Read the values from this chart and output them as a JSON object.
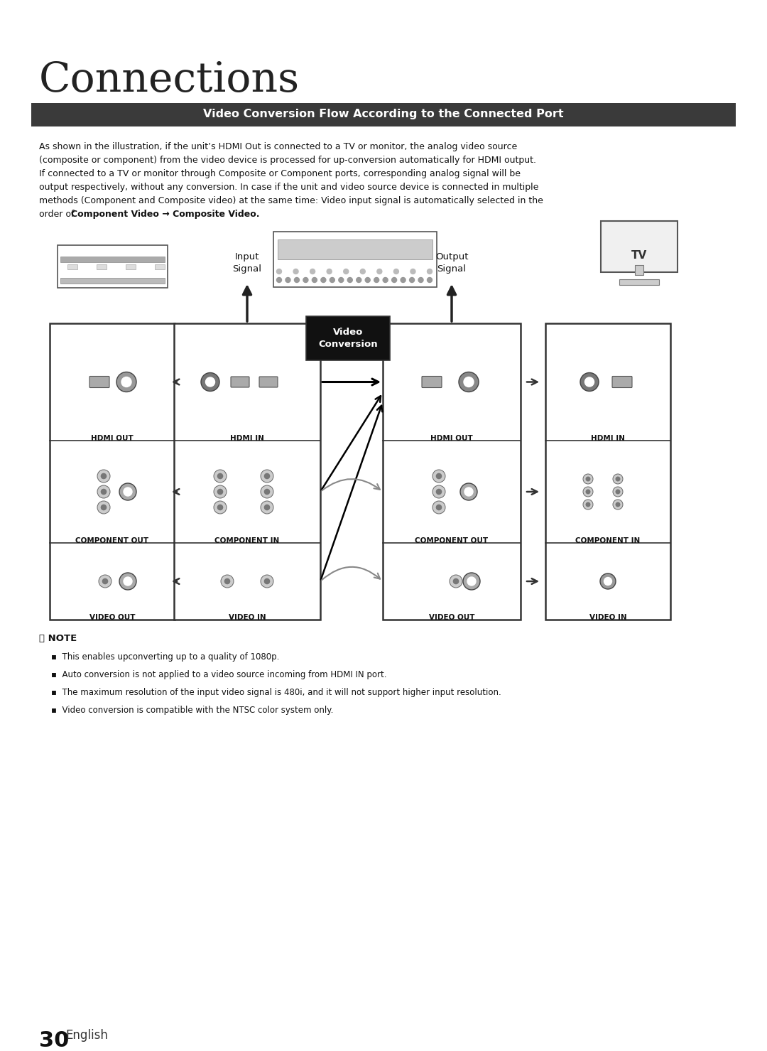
{
  "title": "Connections",
  "section_title": "Video Conversion Flow According to the Connected Port",
  "section_bg": "#3a3a3a",
  "section_fg": "#ffffff",
  "body_text_lines": [
    "As shown in the illustration, if the unit’s HDMI Out is connected to a TV or monitor, the analog video source",
    "(composite or component) from the video device is processed for up-conversion automatically for HDMI output.",
    "If connected to a TV or monitor through Composite or Component ports, corresponding analog signal will be",
    "output respectively, without any conversion. In case if the unit and video source device is connected in multiple",
    "methods (Component and Composite video) at the same time: Video input signal is automatically selected in the",
    "order of "
  ],
  "bold_suffix": "Component Video → Composite Video.",
  "note_title": "NOTE",
  "notes": [
    "This enables upconverting up to a quality of 1080p.",
    "Auto conversion is not applied to a video source incoming from HDMI IN port.",
    "The maximum resolution of the input video signal is 480i, and it will not support higher input resolution.",
    "Video conversion is compatible with the NTSC color system only."
  ],
  "page_num": "30",
  "page_lang": "English",
  "input_signal_label": "Input\nSignal",
  "output_signal_label": "Output\nSignal",
  "video_conversion_label": "Video\nConversion",
  "col_labels": [
    [
      "HDMI OUT",
      "COMPONENT OUT",
      "VIDEO OUT"
    ],
    [
      "HDMI IN",
      "COMPONENT IN",
      "VIDEO IN"
    ],
    [
      "HDMI OUT",
      "COMPONENT OUT",
      "VIDEO OUT"
    ],
    [
      "HDMI IN",
      "COMPONENT IN",
      "VIDEO IN"
    ]
  ],
  "background_color": "#ffffff"
}
